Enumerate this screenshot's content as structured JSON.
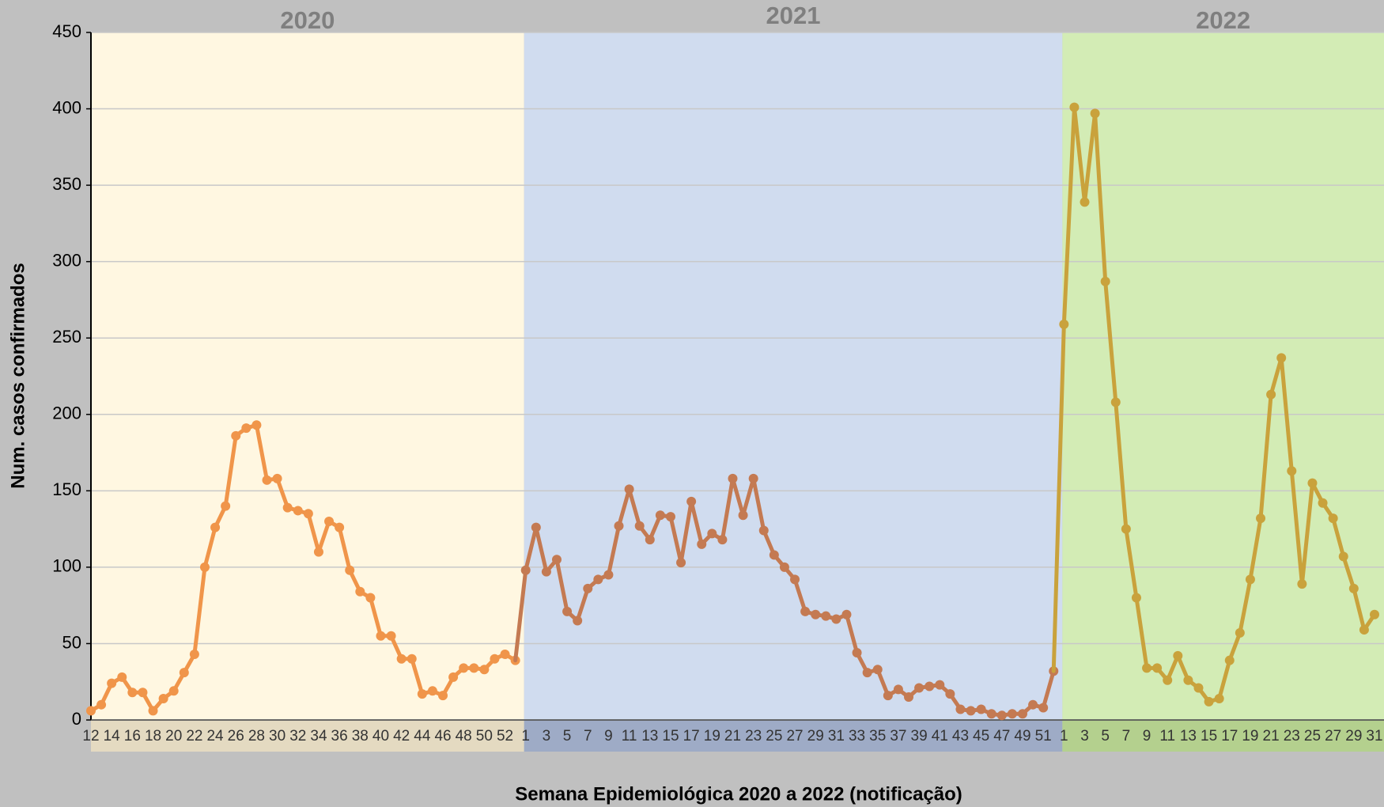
{
  "chart_data": {
    "type": "line",
    "y_label": "Num. casos confirmados",
    "x_label": "Semana Epidemiológica 2020 a 2022 (notificação)",
    "ylim": [
      0,
      450
    ],
    "yticks": [
      0,
      50,
      100,
      150,
      200,
      250,
      300,
      350,
      400,
      450
    ],
    "grid": true,
    "series": [
      {
        "name": "2020",
        "color": "#f0954a",
        "background": "#fff7e1",
        "label_band": "#e4dac1",
        "categories": [
          "12",
          null,
          "14",
          null,
          "16",
          null,
          "18",
          null,
          "20",
          null,
          "22",
          null,
          "24",
          null,
          "26",
          null,
          "28",
          null,
          "30",
          null,
          "32",
          null,
          "34",
          null,
          "36",
          null,
          "38",
          null,
          "40",
          null,
          "42",
          null,
          "44",
          null,
          "46",
          null,
          "48",
          null,
          "50",
          null,
          "52",
          null
        ],
        "values": [
          6,
          10,
          24,
          28,
          18,
          18,
          6,
          14,
          19,
          31,
          43,
          100,
          126,
          140,
          186,
          191,
          193,
          157,
          158,
          139,
          137,
          135,
          110,
          130,
          126,
          98,
          84,
          80,
          55,
          55,
          40,
          40,
          17,
          19,
          16,
          28,
          34,
          34,
          33,
          40,
          43,
          39
        ]
      },
      {
        "name": "2021",
        "color": "#c47a52",
        "background": "#d0dcef",
        "label_band": "#9eabc6",
        "categories": [
          "1",
          null,
          "3",
          null,
          "5",
          null,
          "7",
          null,
          "9",
          null,
          "11",
          null,
          "13",
          null,
          "15",
          null,
          "17",
          null,
          "19",
          null,
          "21",
          null,
          "23",
          null,
          "25",
          null,
          "27",
          null,
          "29",
          null,
          "31",
          null,
          "33",
          null,
          "35",
          null,
          "37",
          null,
          "39",
          null,
          "41",
          null,
          "43",
          null,
          "45",
          null,
          "47",
          null,
          "49",
          null,
          "51",
          null
        ],
        "values": [
          98,
          126,
          97,
          105,
          71,
          65,
          86,
          92,
          95,
          127,
          151,
          127,
          118,
          134,
          133,
          103,
          143,
          115,
          122,
          118,
          158,
          134,
          158,
          124,
          108,
          100,
          92,
          71,
          69,
          68,
          66,
          69,
          44,
          31,
          33,
          16,
          20,
          15,
          21,
          22,
          23,
          17,
          7,
          6,
          7,
          4,
          3,
          4,
          4,
          10,
          8,
          32
        ]
      },
      {
        "name": "2022",
        "color": "#c9a23c",
        "background": "#d3ecb5",
        "label_band": "#b4d08e",
        "categories": [
          "1",
          null,
          "3",
          null,
          "5",
          null,
          "7",
          null,
          "9",
          null,
          "11",
          null,
          "13",
          null,
          "15",
          null,
          "17",
          null,
          "19",
          null,
          "21",
          null,
          "23",
          null,
          "25",
          null,
          "27",
          null,
          "29",
          null,
          "31"
        ],
        "values": [
          259,
          401,
          339,
          397,
          287,
          208,
          125,
          80,
          34,
          34,
          26,
          42,
          26,
          21,
          12,
          14,
          39,
          57,
          92,
          132,
          213,
          237,
          163,
          89,
          155,
          142,
          132,
          107,
          86,
          59,
          69
        ]
      }
    ]
  }
}
